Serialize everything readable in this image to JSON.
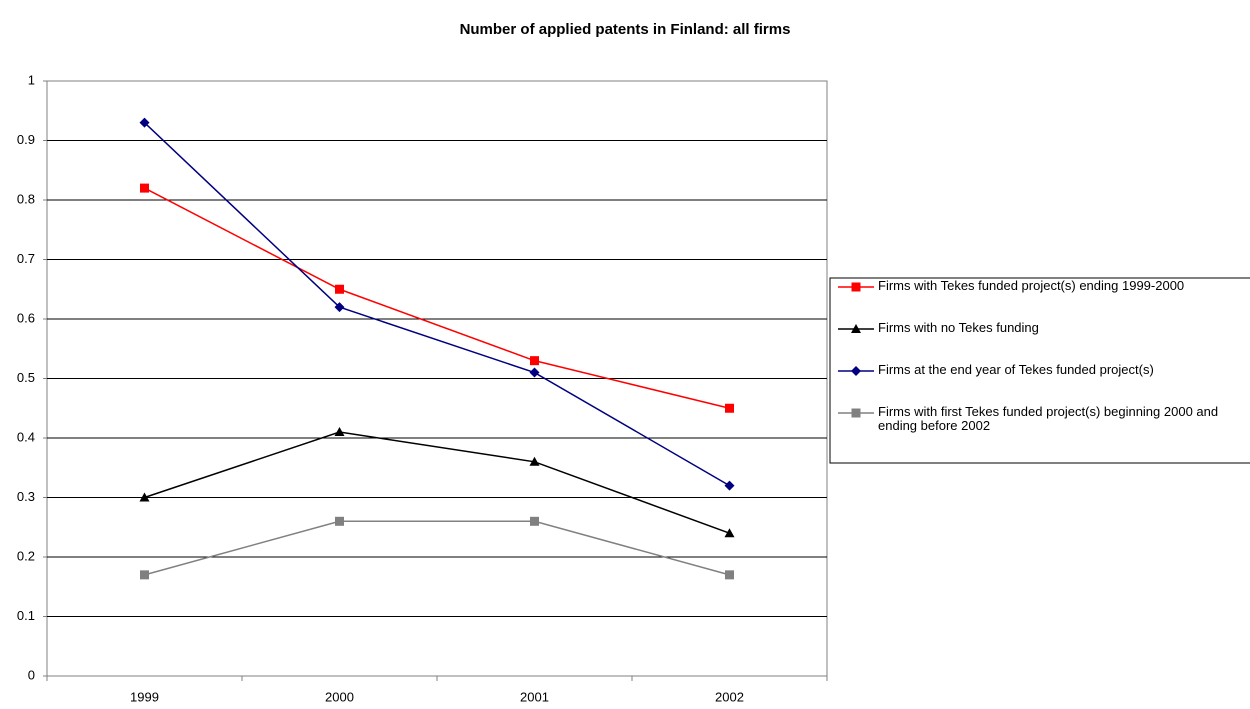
{
  "chart_data": {
    "type": "line",
    "title": "Number of applied patents in Finland: all firms",
    "categories": [
      "1999",
      "2000",
      "2001",
      "2002"
    ],
    "series": [
      {
        "name": "Firms with Tekes funded project(s) ending 1999-2000",
        "color": "#ff0000",
        "marker": "square",
        "values": [
          0.82,
          0.65,
          0.53,
          0.45
        ]
      },
      {
        "name": "Firms with no Tekes funding",
        "color": "#000000",
        "marker": "triangle",
        "values": [
          0.3,
          0.41,
          0.36,
          0.24
        ]
      },
      {
        "name": "Firms at the end year of Tekes funded project(s)",
        "color": "#000080",
        "marker": "diamond",
        "values": [
          0.93,
          0.62,
          0.51,
          0.32
        ]
      },
      {
        "name": "Firms with first Tekes funded project(s) beginning 2000 and ending before 2002",
        "color": "#808080",
        "marker": "square",
        "values": [
          0.17,
          0.26,
          0.26,
          0.17
        ]
      }
    ],
    "ylim": [
      0,
      1
    ],
    "yticks": [
      0,
      0.1,
      0.2,
      0.3,
      0.4,
      0.5,
      0.6,
      0.7,
      0.8,
      0.9,
      1
    ],
    "grid": true,
    "legend": "right"
  }
}
